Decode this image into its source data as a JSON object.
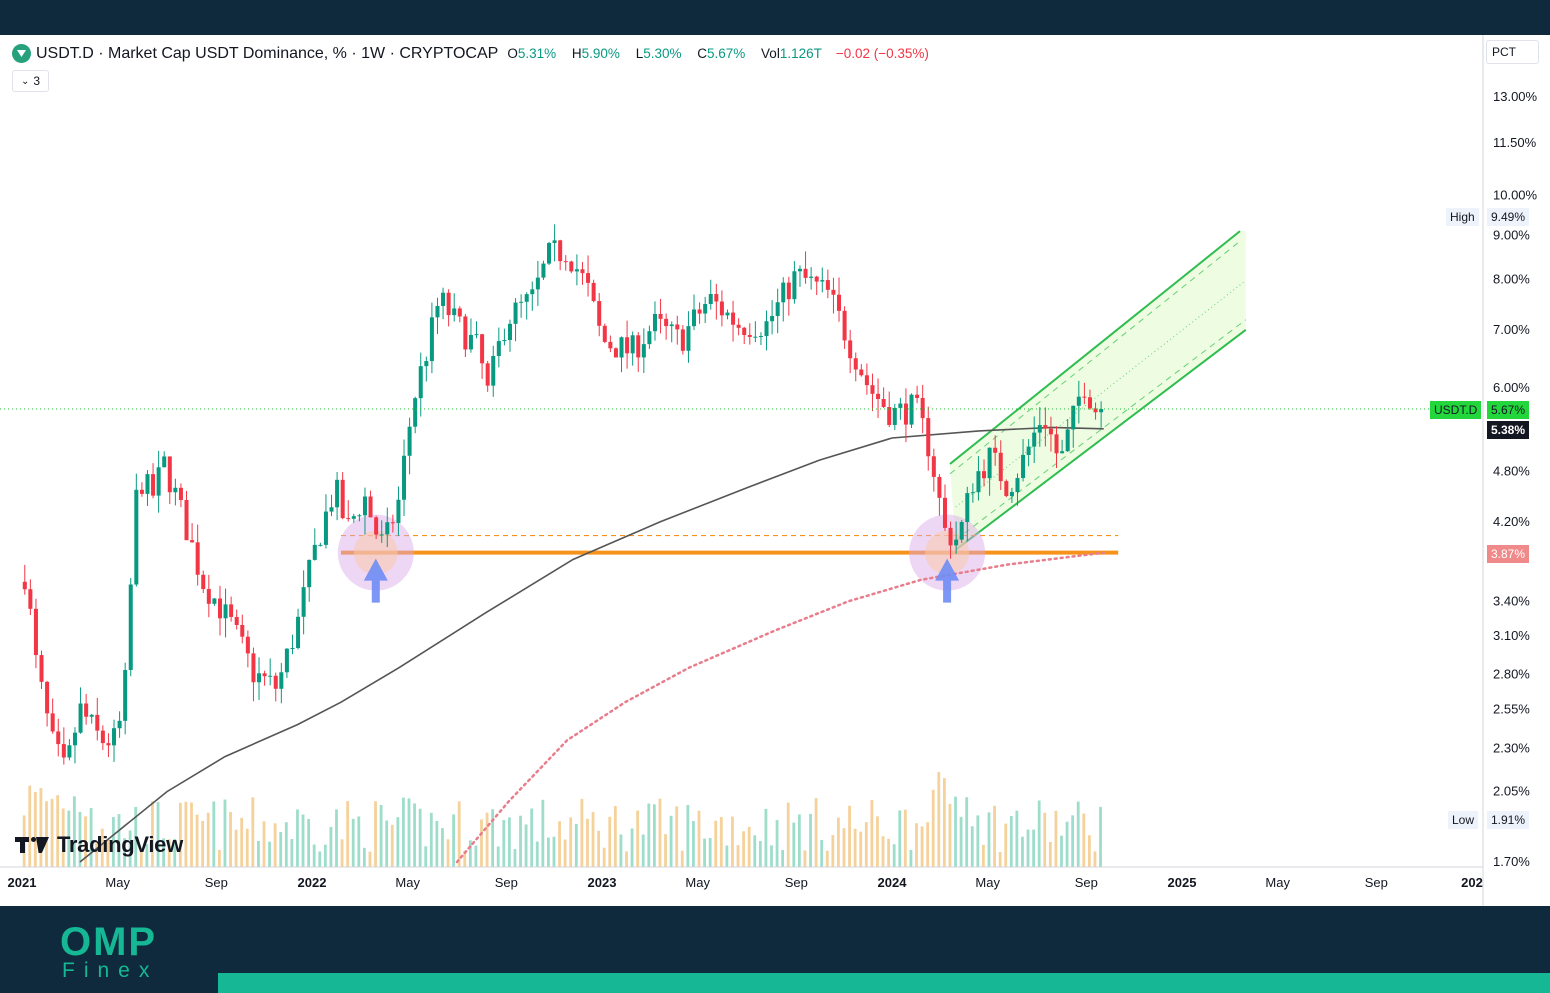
{
  "header": {
    "title": "USDT.D · Market Cap USDT Dominance, % · 1W · CRYPTOCAP",
    "ohlc": [
      {
        "k": "O",
        "v": "5.31%"
      },
      {
        "k": "H",
        "v": "5.90%"
      },
      {
        "k": "L",
        "v": "5.30%"
      },
      {
        "k": "C",
        "v": "5.67%"
      },
      {
        "k": "Vol",
        "v": "1.126T"
      }
    ],
    "change": "−0.02 (−0.35%)",
    "collapse_label": "3"
  },
  "scale_button": "PCT",
  "price_tags": {
    "high_label": "High",
    "high_value": "9.49%",
    "low_label": "Low",
    "low_value": "1.91%",
    "symbol_label": "USDT.D",
    "symbol_value": "5.67%",
    "ma_value": "5.38%",
    "ma2_value": "3.87%"
  },
  "branding": {
    "tradingview": "TradingView",
    "omp": "OMP",
    "finex": "Finex"
  },
  "colors": {
    "up": "#089981",
    "down": "#f23645",
    "ma_long": "#555555",
    "ma_dotted": "#e87d8c",
    "support": "#f7931a",
    "channel": "#2ebd4e",
    "channel_fill": "#eafcd9",
    "highlight": "#d9a7e8",
    "arrow": "#6e8cf5",
    "brand": "#15b795"
  },
  "chart_data": {
    "type": "candlestick",
    "interval": "1W",
    "x_range": [
      "2021-01",
      "2026-01"
    ],
    "y_scale": "log",
    "y_range": [
      1.7,
      14.0
    ],
    "y_ticks": [
      "13.00%",
      "11.50%",
      "10.00%",
      "9.00%",
      "8.00%",
      "7.00%",
      "6.00%",
      "4.80%",
      "4.20%",
      "3.40%",
      "3.10%",
      "2.80%",
      "2.55%",
      "2.30%",
      "2.05%",
      "1.70%"
    ],
    "x_ticks": [
      {
        "label": "2021",
        "t": 2021.0
      },
      {
        "label": "May",
        "t": 2021.33
      },
      {
        "label": "Sep",
        "t": 2021.67
      },
      {
        "label": "2022",
        "t": 2022.0
      },
      {
        "label": "May",
        "t": 2022.33
      },
      {
        "label": "Sep",
        "t": 2022.67
      },
      {
        "label": "2023",
        "t": 2023.0
      },
      {
        "label": "May",
        "t": 2023.33
      },
      {
        "label": "Sep",
        "t": 2023.67
      },
      {
        "label": "2024",
        "t": 2024.0
      },
      {
        "label": "May",
        "t": 2024.33
      },
      {
        "label": "Sep",
        "t": 2024.67
      },
      {
        "label": "2025",
        "t": 2025.0
      },
      {
        "label": "May",
        "t": 2025.33
      },
      {
        "label": "Sep",
        "t": 2025.67
      },
      {
        "label": "202",
        "t": 2026.0
      }
    ],
    "close_anchors": [
      {
        "t": 2021.0,
        "v": 3.85
      },
      {
        "t": 2021.05,
        "v": 2.85
      },
      {
        "t": 2021.1,
        "v": 2.35
      },
      {
        "t": 2021.15,
        "v": 2.15
      },
      {
        "t": 2021.2,
        "v": 2.55
      },
      {
        "t": 2021.27,
        "v": 2.35
      },
      {
        "t": 2021.33,
        "v": 2.35
      },
      {
        "t": 2021.36,
        "v": 2.8
      },
      {
        "t": 2021.4,
        "v": 4.75
      },
      {
        "t": 2021.45,
        "v": 4.5
      },
      {
        "t": 2021.49,
        "v": 4.9
      },
      {
        "t": 2021.55,
        "v": 4.3
      },
      {
        "t": 2021.62,
        "v": 3.6
      },
      {
        "t": 2021.72,
        "v": 3.2
      },
      {
        "t": 2021.8,
        "v": 2.8
      },
      {
        "t": 2021.88,
        "v": 2.7
      },
      {
        "t": 2021.95,
        "v": 3.2
      },
      {
        "t": 2022.02,
        "v": 4.0
      },
      {
        "t": 2022.08,
        "v": 4.6
      },
      {
        "t": 2022.12,
        "v": 4.1
      },
      {
        "t": 2022.18,
        "v": 4.5
      },
      {
        "t": 2022.23,
        "v": 4.0
      },
      {
        "t": 2022.25,
        "v": 3.95
      },
      {
        "t": 2022.3,
        "v": 4.45
      },
      {
        "t": 2022.35,
        "v": 5.8
      },
      {
        "t": 2022.4,
        "v": 6.7
      },
      {
        "t": 2022.44,
        "v": 7.6
      },
      {
        "t": 2022.5,
        "v": 7.1
      },
      {
        "t": 2022.58,
        "v": 6.6
      },
      {
        "t": 2022.6,
        "v": 5.8
      },
      {
        "t": 2022.67,
        "v": 7.2
      },
      {
        "t": 2022.76,
        "v": 7.6
      },
      {
        "t": 2022.82,
        "v": 8.55
      },
      {
        "t": 2022.88,
        "v": 8.65
      },
      {
        "t": 2022.95,
        "v": 7.8
      },
      {
        "t": 2023.0,
        "v": 6.8
      },
      {
        "t": 2023.1,
        "v": 6.6
      },
      {
        "t": 2023.18,
        "v": 7.1
      },
      {
        "t": 2023.27,
        "v": 6.8
      },
      {
        "t": 2023.37,
        "v": 7.6
      },
      {
        "t": 2023.47,
        "v": 7.1
      },
      {
        "t": 2023.57,
        "v": 7.1
      },
      {
        "t": 2023.67,
        "v": 8.1
      },
      {
        "t": 2023.78,
        "v": 7.7
      },
      {
        "t": 2023.85,
        "v": 6.8
      },
      {
        "t": 2023.92,
        "v": 6.0
      },
      {
        "t": 2024.0,
        "v": 5.6
      },
      {
        "t": 2024.08,
        "v": 5.7
      },
      {
        "t": 2024.13,
        "v": 5.1
      },
      {
        "t": 2024.18,
        "v": 4.1
      },
      {
        "t": 2024.23,
        "v": 4.0
      },
      {
        "t": 2024.28,
        "v": 4.7
      },
      {
        "t": 2024.34,
        "v": 5.0
      },
      {
        "t": 2024.4,
        "v": 4.6
      },
      {
        "t": 2024.46,
        "v": 5.0
      },
      {
        "t": 2024.52,
        "v": 5.6
      },
      {
        "t": 2024.58,
        "v": 4.9
      },
      {
        "t": 2024.63,
        "v": 5.6
      },
      {
        "t": 2024.66,
        "v": 6.1
      },
      {
        "t": 2024.71,
        "v": 5.6
      },
      {
        "t": 2024.73,
        "v": 5.67
      }
    ],
    "ma_long": [
      {
        "t": 2021.2,
        "v": 1.7
      },
      {
        "t": 2021.5,
        "v": 2.05
      },
      {
        "t": 2021.7,
        "v": 2.25
      },
      {
        "t": 2021.95,
        "v": 2.45
      },
      {
        "t": 2022.1,
        "v": 2.6
      },
      {
        "t": 2022.3,
        "v": 2.85
      },
      {
        "t": 2022.6,
        "v": 3.3
      },
      {
        "t": 2022.9,
        "v": 3.8
      },
      {
        "t": 2023.2,
        "v": 4.2
      },
      {
        "t": 2023.5,
        "v": 4.6
      },
      {
        "t": 2023.75,
        "v": 4.95
      },
      {
        "t": 2024.0,
        "v": 5.25
      },
      {
        "t": 2024.3,
        "v": 5.35
      },
      {
        "t": 2024.55,
        "v": 5.4
      },
      {
        "t": 2024.73,
        "v": 5.38
      }
    ],
    "ma_dotted": [
      {
        "t": 2022.5,
        "v": 1.7
      },
      {
        "t": 2022.68,
        "v": 2.0
      },
      {
        "t": 2022.88,
        "v": 2.35
      },
      {
        "t": 2023.08,
        "v": 2.6
      },
      {
        "t": 2023.3,
        "v": 2.85
      },
      {
        "t": 2023.6,
        "v": 3.15
      },
      {
        "t": 2023.85,
        "v": 3.4
      },
      {
        "t": 2024.1,
        "v": 3.6
      },
      {
        "t": 2024.4,
        "v": 3.75
      },
      {
        "t": 2024.73,
        "v": 3.87
      }
    ],
    "support_level": 3.87,
    "support_dashed": 4.05,
    "support_range": [
      2022.1,
      2024.78
    ],
    "channel": {
      "lower": [
        {
          "t": 2024.22,
          "v": 3.9
        },
        {
          "t": 2025.22,
          "v": 7.0
        }
      ],
      "upper": [
        {
          "t": 2024.2,
          "v": 4.9
        },
        {
          "t": 2025.2,
          "v": 9.1
        }
      ],
      "fill_end": 2025.22
    },
    "bounce_points": [
      {
        "t": 2022.22,
        "v": 3.87
      },
      {
        "t": 2024.19,
        "v": 3.87
      }
    ]
  }
}
